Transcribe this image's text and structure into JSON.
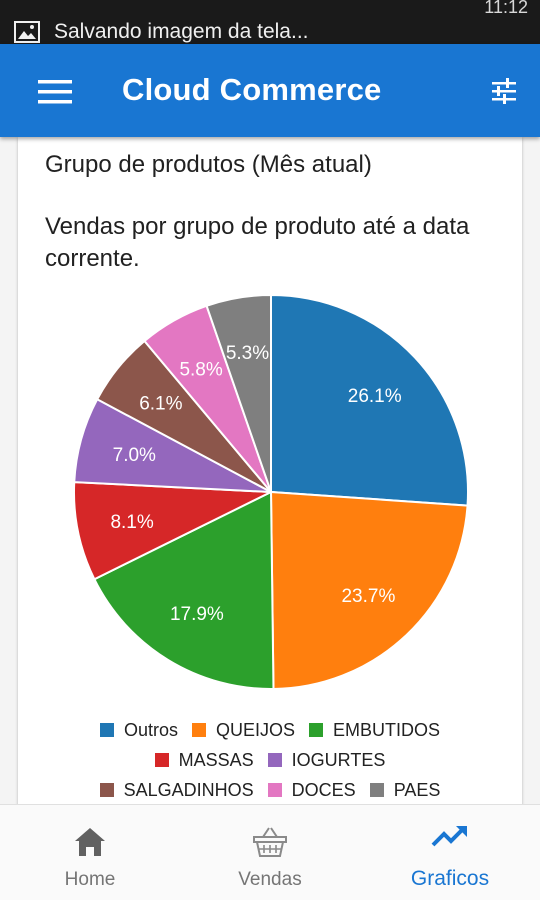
{
  "status_bar": {
    "notification": "Salvando imagem da tela...",
    "time": "11:12"
  },
  "app_bar": {
    "title": "Cloud Commerce",
    "menu_icon": "hamburger-menu-icon",
    "filter_icon": "sliders-icon"
  },
  "card": {
    "title": "Grupo de produtos (Mês atual)",
    "subtitle": "Vendas por grupo de produto até a data corrente."
  },
  "chart_data": {
    "type": "pie",
    "title": "",
    "categories": [
      "Outros",
      "QUEIJOS",
      "EMBUTIDOS",
      "MASSAS",
      "IOGURTES",
      "SALGADINHOS",
      "DOCES",
      "PAES"
    ],
    "values": [
      26.1,
      23.7,
      17.9,
      8.1,
      7.0,
      6.1,
      5.8,
      5.3
    ],
    "labels": [
      "26.1%",
      "23.7%",
      "17.9%",
      "8.1%",
      "7.0%",
      "6.1%",
      "5.8%",
      "5.3%"
    ],
    "colors": [
      "#1f77b4",
      "#ff7f0e",
      "#2ca02c",
      "#d62728",
      "#9467bd",
      "#8c564b",
      "#e377c2",
      "#7f7f7f"
    ],
    "legend_position": "bottom"
  },
  "bottom_nav": {
    "items": [
      {
        "label": "Home",
        "icon": "home-icon"
      },
      {
        "label": "Vendas",
        "icon": "basket-icon"
      },
      {
        "label": "Graficos",
        "icon": "trending-up-icon"
      }
    ],
    "active_color": "#1976d2",
    "inactive_color": "#757575"
  }
}
